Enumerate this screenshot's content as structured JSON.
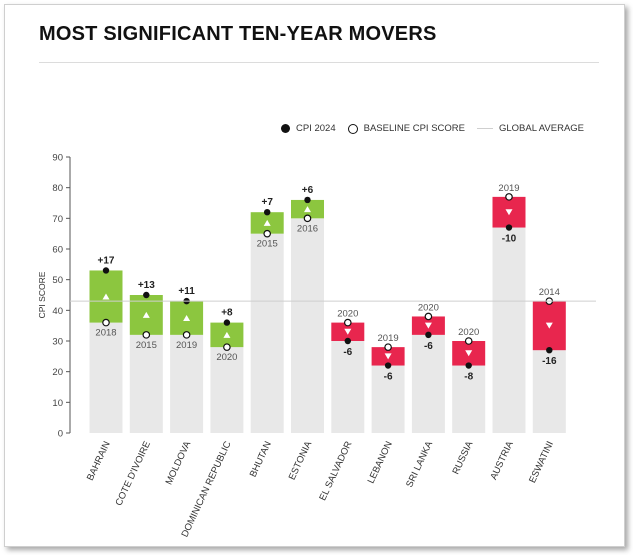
{
  "title": "MOST SIGNIFICANT TEN-YEAR MOVERS",
  "legend": {
    "cpi": "CPI 2024",
    "baseline": "BASELINE CPI SCORE",
    "average": "GLOBAL AVERAGE"
  },
  "colors": {
    "increase": "#8cc63f",
    "decrease": "#e8264e",
    "baseline_bar": "#e8e8e8",
    "average_line": "#cfcfcf"
  },
  "chart_data": {
    "type": "bar",
    "ylabel": "CPI SCORE",
    "ylim": [
      0,
      90
    ],
    "yticks": [
      0,
      10,
      20,
      30,
      40,
      50,
      60,
      70,
      80,
      90
    ],
    "global_average": 43,
    "grid": false,
    "legend_position": "top-right",
    "categories": [
      "BAHRAIN",
      "COTE D'IVOIRE",
      "MOLDOVA",
      "DOMINICAN REPUBLIC",
      "BHUTAN",
      "ESTONIA",
      "EL SALVADOR",
      "LEBANON",
      "SRI LANKA",
      "RUSSIA",
      "AUSTRIA",
      "ESWATINI"
    ],
    "series": [
      {
        "name": "CPI 2024",
        "values": [
          53,
          45,
          43,
          36,
          72,
          76,
          30,
          22,
          32,
          22,
          67,
          27
        ]
      },
      {
        "name": "BASELINE CPI SCORE",
        "values": [
          36,
          32,
          32,
          28,
          65,
          70,
          36,
          28,
          38,
          30,
          77,
          43
        ]
      }
    ],
    "baseline_years": [
      "2018",
      "2015",
      "2019",
      "2020",
      "2015",
      "2016",
      "2020",
      "2019",
      "2020",
      "2020",
      "2019",
      "2014"
    ],
    "changes": [
      "+17",
      "+13",
      "+11",
      "+8",
      "+7",
      "+6",
      "-6",
      "-6",
      "-6",
      "-8",
      "-10",
      "-16"
    ]
  }
}
